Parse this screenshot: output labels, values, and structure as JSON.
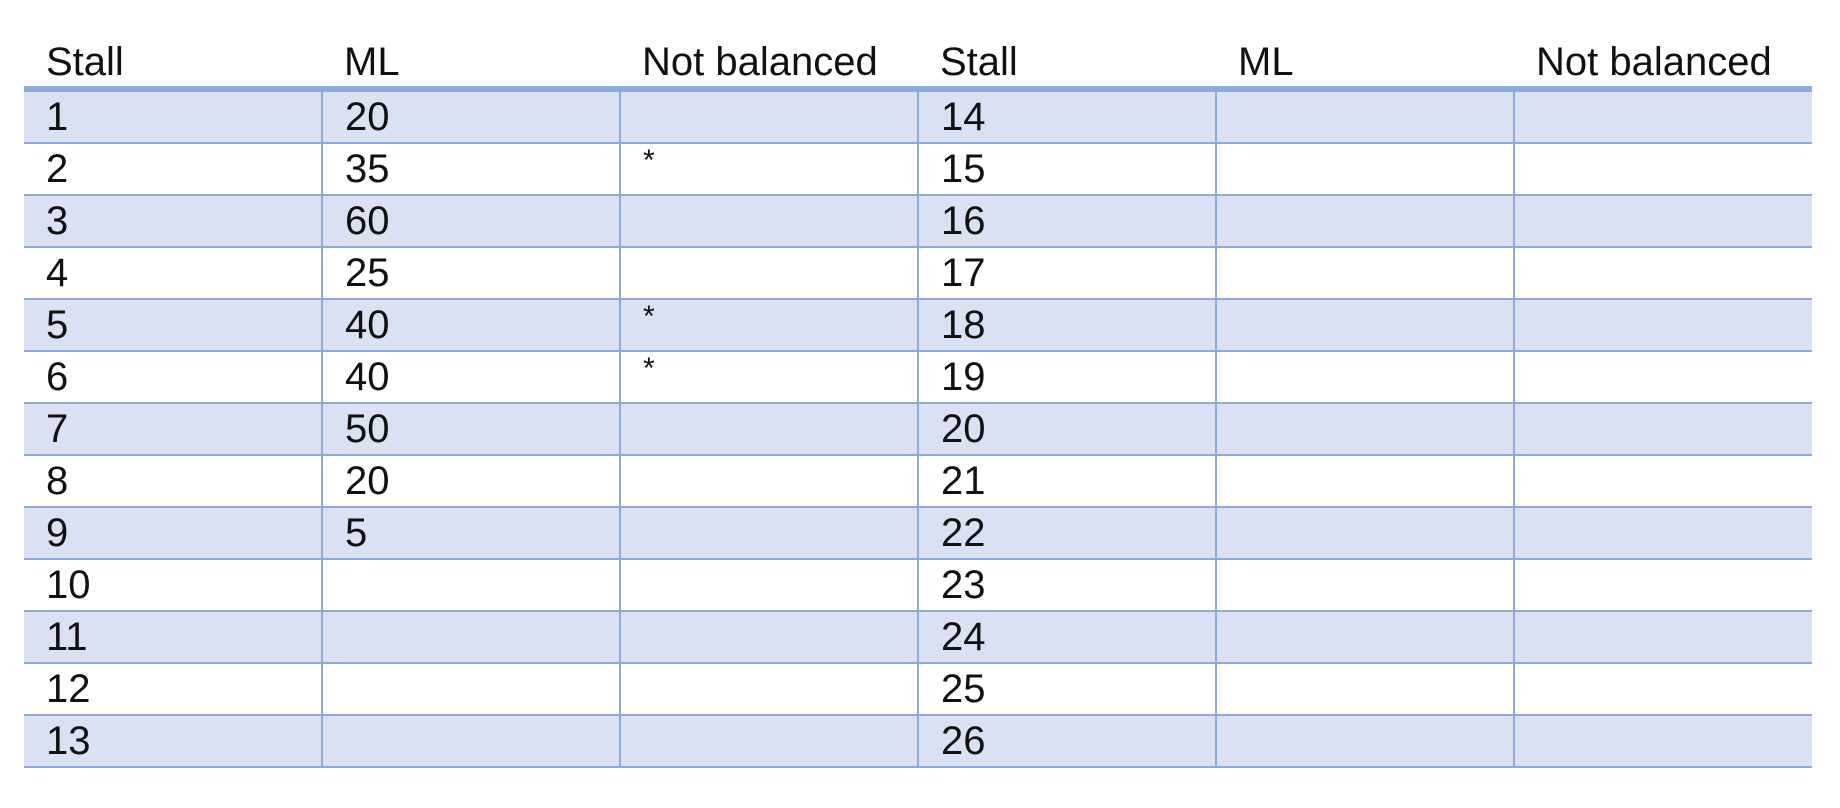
{
  "table": {
    "headers": [
      "Stall",
      "ML",
      "Not balanced",
      "Stall",
      "ML",
      "Not balanced"
    ],
    "rows": [
      [
        "1",
        "20",
        "",
        "14",
        "",
        ""
      ],
      [
        "2",
        "35",
        "*",
        "15",
        "",
        ""
      ],
      [
        "3",
        "60",
        "",
        "16",
        "",
        ""
      ],
      [
        "4",
        "25",
        "",
        "17",
        "",
        ""
      ],
      [
        "5",
        "40",
        "*",
        "18",
        "",
        ""
      ],
      [
        "6",
        "40",
        "*",
        "19",
        "",
        ""
      ],
      [
        "7",
        "50",
        "",
        "20",
        "",
        ""
      ],
      [
        "8",
        "20",
        "",
        "21",
        "",
        ""
      ],
      [
        "9",
        "5",
        "",
        "22",
        "",
        ""
      ],
      [
        "10",
        "",
        "",
        "23",
        "",
        ""
      ],
      [
        "11",
        "",
        "",
        "24",
        "",
        ""
      ],
      [
        "12",
        "",
        "",
        "25",
        "",
        ""
      ],
      [
        "13",
        "",
        "",
        "26",
        "",
        ""
      ]
    ]
  },
  "colors": {
    "band": "#d9e1f2",
    "rule": "#8ea9db",
    "text": "#111111"
  }
}
